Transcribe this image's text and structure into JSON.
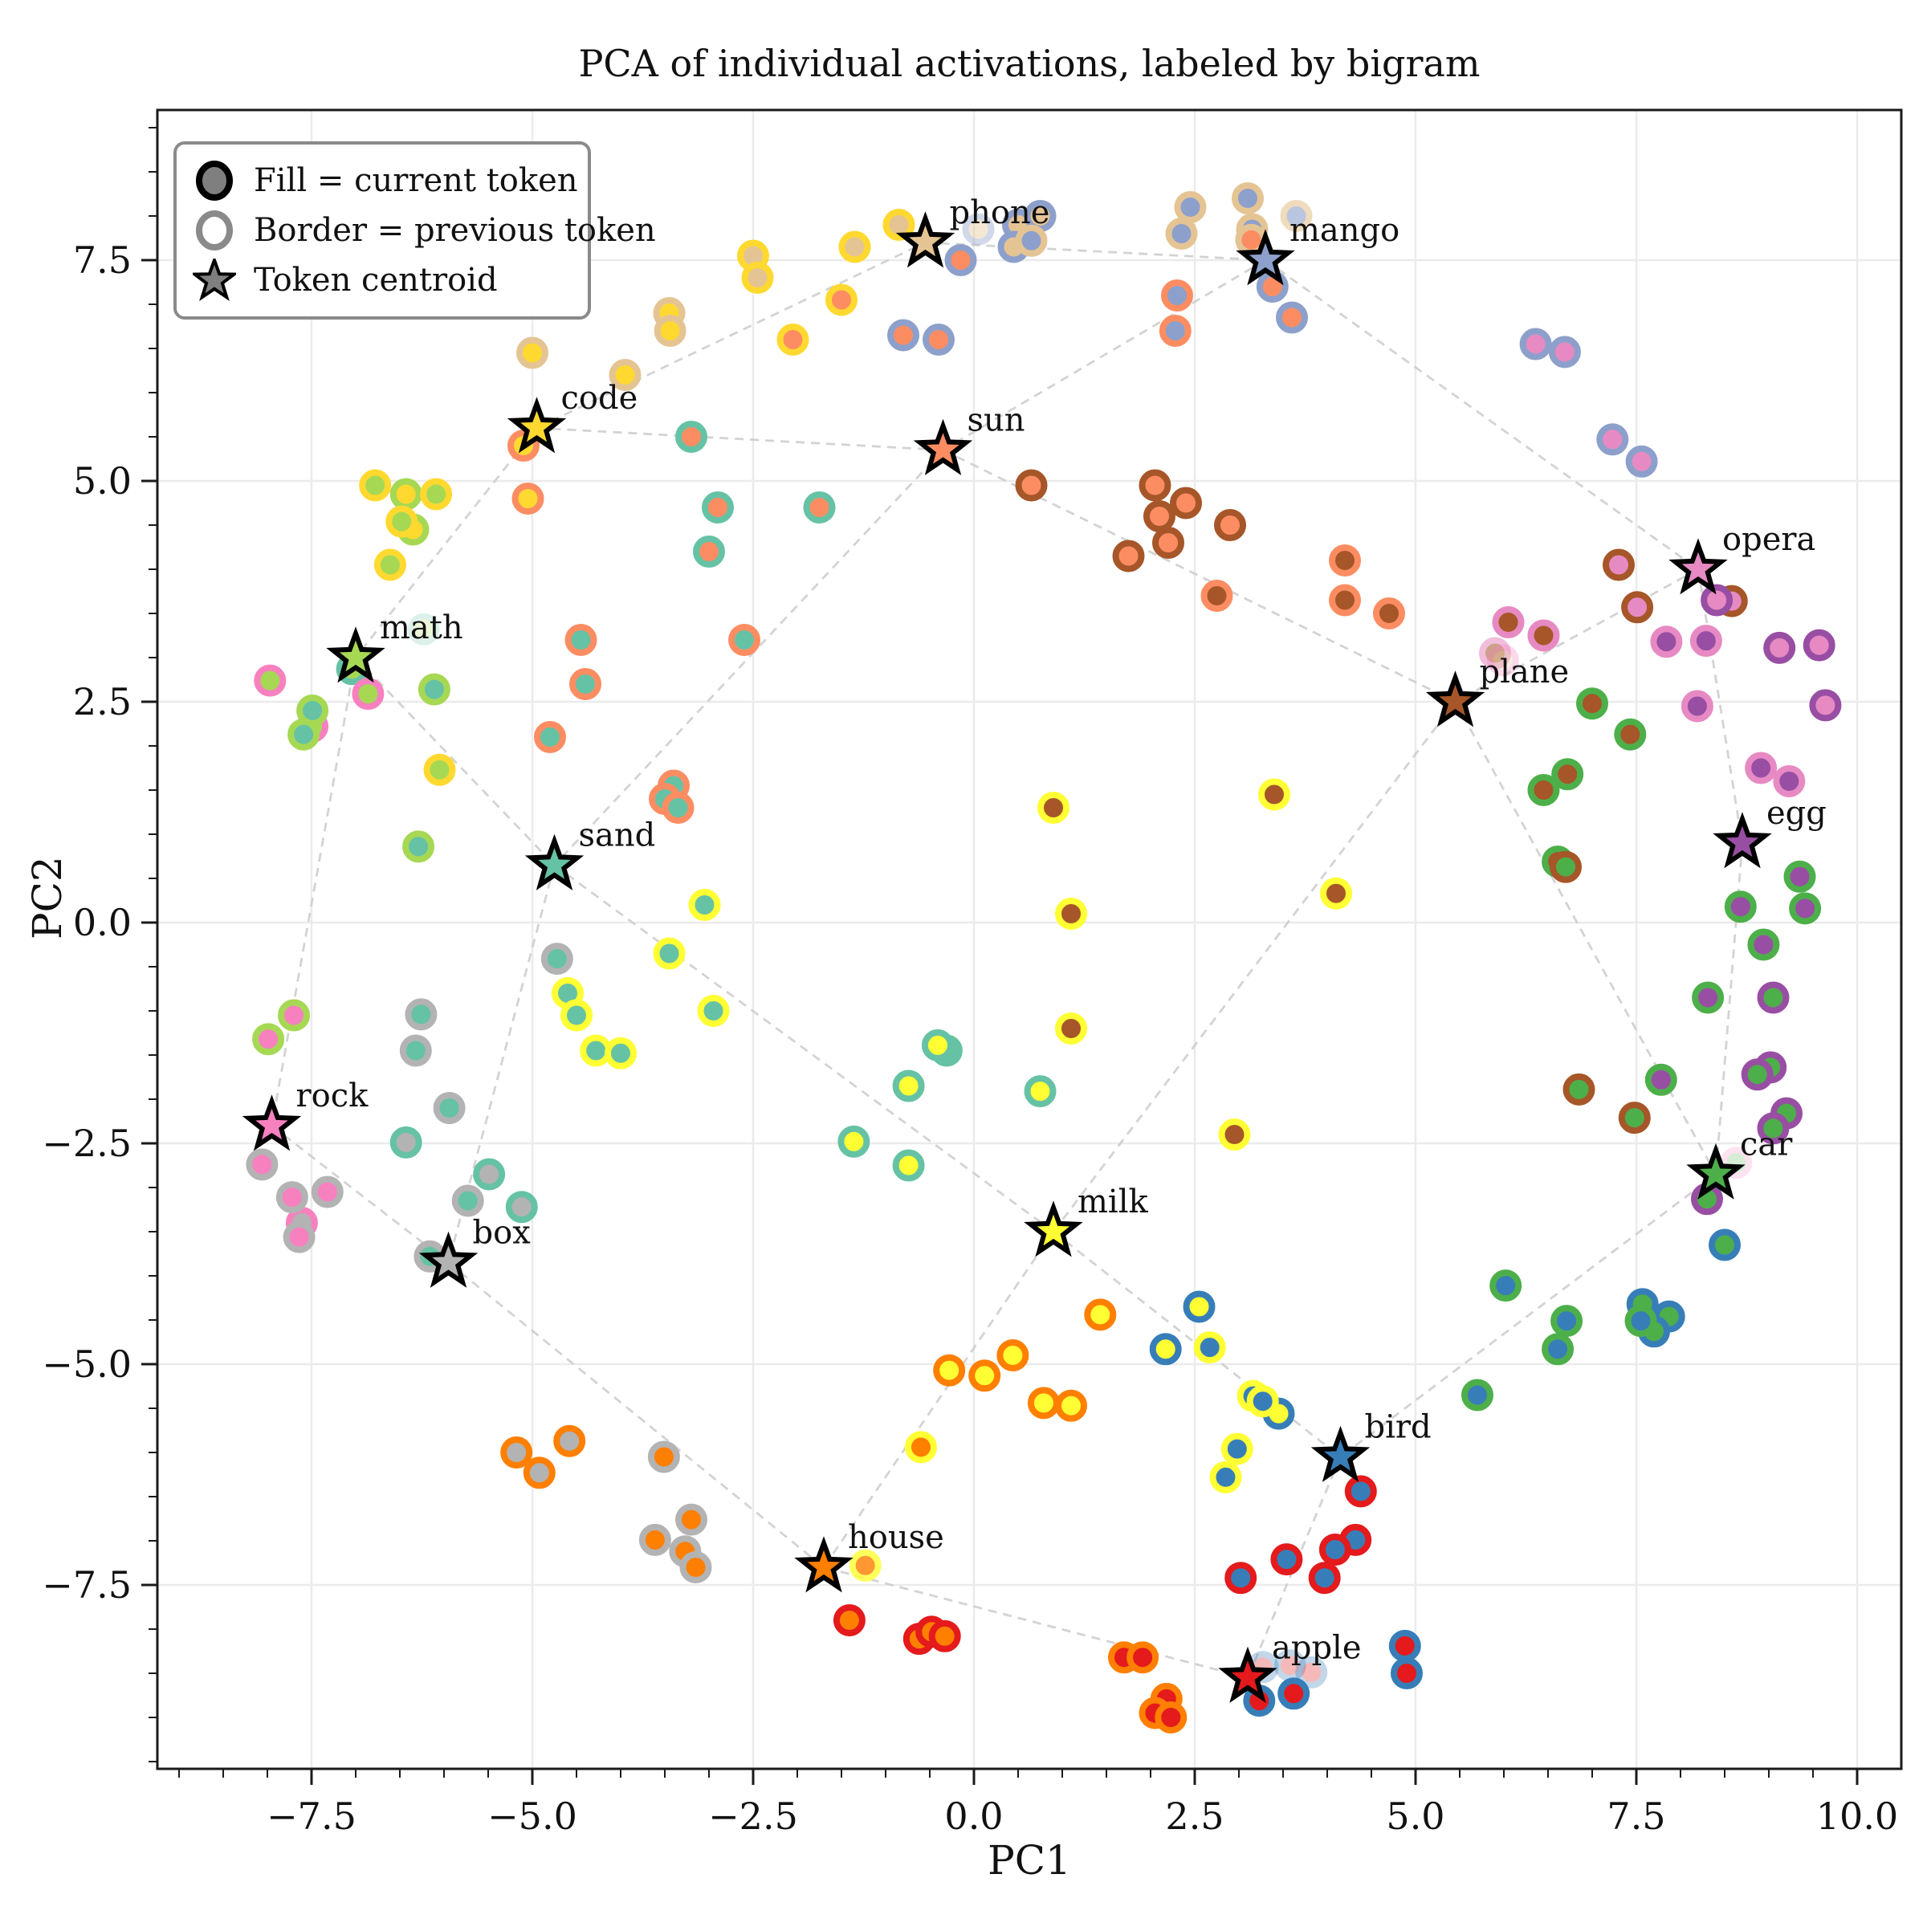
{
  "title": "PCA of individual activations, labeled by bigram",
  "axes": {
    "xlabel": "PC1",
    "ylabel": "PC2"
  },
  "legend": {
    "items": [
      {
        "icon": "filled-circle",
        "label": "Fill = current token"
      },
      {
        "icon": "open-circle",
        "label": "Border = previous token"
      },
      {
        "icon": "star",
        "label": "Token centroid"
      }
    ]
  },
  "chart_data": {
    "type": "scatter",
    "title": "PCA of individual activations, labeled by bigram",
    "xlabel": "PC1",
    "ylabel": "PC2",
    "xlim": [
      -9.25,
      10.5
    ],
    "ylim": [
      -9.6,
      9.2
    ],
    "xticks": [
      -7.5,
      -5.0,
      -2.5,
      0.0,
      2.5,
      5.0,
      7.5,
      10.0
    ],
    "yticks": [
      -7.5,
      -5.0,
      -2.5,
      0.0,
      2.5,
      5.0,
      7.5
    ],
    "grid": true,
    "colors": {
      "apple": "#E41A1C",
      "bird": "#377EB8",
      "box": "#B3B3B3",
      "car": "#4DAF4A",
      "code": "#FFD92F",
      "egg": "#984EA3",
      "house": "#FF7F00",
      "mango": "#8DA0CB",
      "math": "#A6D854",
      "milk": "#FFFF33",
      "opera": "#E78AC3",
      "phone": "#E5C494",
      "plane": "#A65628",
      "rock": "#F781BF",
      "sand": "#66C2A5",
      "sun": "#FC8D62"
    },
    "centroids": [
      {
        "token": "phone",
        "x": -0.55,
        "y": 7.7
      },
      {
        "token": "mango",
        "x": 3.3,
        "y": 7.5
      },
      {
        "token": "code",
        "x": -4.95,
        "y": 5.6
      },
      {
        "token": "sun",
        "x": -0.35,
        "y": 5.35
      },
      {
        "token": "opera",
        "x": 8.2,
        "y": 4.0
      },
      {
        "token": "math",
        "x": -7.0,
        "y": 3.0
      },
      {
        "token": "plane",
        "x": 5.45,
        "y": 2.5
      },
      {
        "token": "egg",
        "x": 8.7,
        "y": 0.9
      },
      {
        "token": "sand",
        "x": -4.75,
        "y": 0.65
      },
      {
        "token": "rock",
        "x": -7.95,
        "y": -2.3
      },
      {
        "token": "car",
        "x": 8.4,
        "y": -2.85
      },
      {
        "token": "box",
        "x": -5.95,
        "y": -3.85
      },
      {
        "token": "milk",
        "x": 0.9,
        "y": -3.5
      },
      {
        "token": "bird",
        "x": 4.15,
        "y": -6.05
      },
      {
        "token": "house",
        "x": -1.7,
        "y": -7.3
      },
      {
        "token": "apple",
        "x": 3.1,
        "y": -8.55
      }
    ],
    "edges": [
      [
        "code",
        "phone"
      ],
      [
        "code",
        "sun"
      ],
      [
        "code",
        "math"
      ],
      [
        "phone",
        "mango"
      ],
      [
        "mango",
        "sun"
      ],
      [
        "mango",
        "opera"
      ],
      [
        "sun",
        "plane"
      ],
      [
        "sun",
        "sand"
      ],
      [
        "opera",
        "plane"
      ],
      [
        "opera",
        "egg"
      ],
      [
        "egg",
        "car"
      ],
      [
        "plane",
        "car"
      ],
      [
        "plane",
        "milk"
      ],
      [
        "car",
        "bird"
      ],
      [
        "math",
        "rock"
      ],
      [
        "math",
        "sand"
      ],
      [
        "sand",
        "box"
      ],
      [
        "sand",
        "milk"
      ],
      [
        "rock",
        "box"
      ],
      [
        "box",
        "house"
      ],
      [
        "milk",
        "house"
      ],
      [
        "milk",
        "bird"
      ],
      [
        "bird",
        "apple"
      ],
      [
        "apple",
        "house"
      ]
    ],
    "points": [
      [
        -0.85,
        7.9,
        "phone",
        "code"
      ],
      [
        -1.35,
        7.65,
        "phone",
        "code"
      ],
      [
        -2.5,
        7.55,
        "phone",
        "code"
      ],
      [
        -2.45,
        7.3,
        "phone",
        "code"
      ],
      [
        0.05,
        7.85,
        "phone",
        "mango",
        0.4
      ],
      [
        0.5,
        7.9,
        "phone",
        "mango"
      ],
      [
        0.75,
        8.0,
        "phone",
        "mango"
      ],
      [
        0.45,
        7.65,
        "phone",
        "mango"
      ],
      [
        -3.45,
        6.9,
        "code",
        "phone"
      ],
      [
        -3.44,
        6.7,
        "code",
        "phone"
      ],
      [
        -5.0,
        6.45,
        "code",
        "phone"
      ],
      [
        -3.95,
        6.2,
        "code",
        "phone"
      ],
      [
        -5.1,
        5.4,
        "code",
        "sun"
      ],
      [
        -5.05,
        4.8,
        "code",
        "sun"
      ],
      [
        -6.43,
        4.85,
        "code",
        "math"
      ],
      [
        -6.35,
        4.45,
        "code",
        "math"
      ],
      [
        2.45,
        8.1,
        "mango",
        "phone"
      ],
      [
        3.1,
        8.2,
        "mango",
        "phone"
      ],
      [
        2.35,
        7.8,
        "mango",
        "phone"
      ],
      [
        3.15,
        7.85,
        "mango",
        "phone"
      ],
      [
        3.65,
        8.0,
        "mango",
        "phone",
        0.6
      ],
      [
        0.65,
        7.72,
        "mango",
        "phone"
      ],
      [
        2.3,
        7.1,
        "mango",
        "sun"
      ],
      [
        2.28,
        6.7,
        "mango",
        "sun"
      ],
      [
        -0.15,
        7.5,
        "sun",
        "mango"
      ],
      [
        -0.8,
        6.65,
        "sun",
        "mango"
      ],
      [
        -0.4,
        6.6,
        "sun",
        "mango"
      ],
      [
        3.38,
        7.2,
        "sun",
        "mango"
      ],
      [
        3.6,
        6.85,
        "sun",
        "mango"
      ],
      [
        3.14,
        7.73,
        "sun",
        "phone"
      ],
      [
        -1.5,
        7.05,
        "sun",
        "code"
      ],
      [
        -2.05,
        6.6,
        "sun",
        "code"
      ],
      [
        0.65,
        4.95,
        "sun",
        "plane"
      ],
      [
        2.05,
        4.95,
        "sun",
        "plane"
      ],
      [
        2.4,
        4.75,
        "sun",
        "plane"
      ],
      [
        2.1,
        4.6,
        "sun",
        "plane"
      ],
      [
        2.2,
        4.3,
        "sun",
        "plane"
      ],
      [
        1.75,
        4.15,
        "sun",
        "plane"
      ],
      [
        2.9,
        4.5,
        "sun",
        "plane"
      ],
      [
        -3.2,
        5.5,
        "sun",
        "sand"
      ],
      [
        -2.9,
        4.7,
        "sun",
        "sand"
      ],
      [
        -3.0,
        4.2,
        "sun",
        "sand"
      ],
      [
        -1.75,
        4.7,
        "sun",
        "sand"
      ],
      [
        -6.78,
        4.95,
        "math",
        "code"
      ],
      [
        -6.09,
        4.85,
        "math",
        "code"
      ],
      [
        -6.48,
        4.54,
        "math",
        "code"
      ],
      [
        -6.61,
        4.05,
        "math",
        "code"
      ],
      [
        -6.05,
        1.73,
        "math",
        "code"
      ],
      [
        -7.04,
        2.87,
        "math",
        "sand"
      ],
      [
        -7.97,
        2.74,
        "math",
        "rock"
      ],
      [
        -6.86,
        2.59,
        "math",
        "rock"
      ],
      [
        -7.49,
        2.22,
        "math",
        "rock"
      ],
      [
        -6.23,
        3.32,
        "math",
        "sand",
        0.22
      ],
      [
        -6.11,
        2.64,
        "sand",
        "math"
      ],
      [
        -7.49,
        2.4,
        "sand",
        "math"
      ],
      [
        -7.59,
        2.13,
        "sand",
        "math"
      ],
      [
        -6.29,
        0.86,
        "sand",
        "math"
      ],
      [
        -4.45,
        3.2,
        "sand",
        "sun"
      ],
      [
        -4.4,
        2.7,
        "sand",
        "sun"
      ],
      [
        -4.8,
        2.1,
        "sand",
        "sun"
      ],
      [
        -2.6,
        3.2,
        "sand",
        "sun"
      ],
      [
        -3.4,
        1.55,
        "sand",
        "sun"
      ],
      [
        -3.5,
        1.4,
        "sand",
        "sun"
      ],
      [
        -3.35,
        1.3,
        "sand",
        "sun"
      ],
      [
        -3.05,
        0.2,
        "sand",
        "milk"
      ],
      [
        -3.45,
        -0.35,
        "sand",
        "milk"
      ],
      [
        -2.95,
        -1.0,
        "sand",
        "milk"
      ],
      [
        -4.6,
        -0.8,
        "sand",
        "milk"
      ],
      [
        -4.5,
        -1.05,
        "sand",
        "milk"
      ],
      [
        -4.28,
        -1.45,
        "sand",
        "milk"
      ],
      [
        -4.0,
        -1.48,
        "sand",
        "milk"
      ],
      [
        -0.31,
        -1.45,
        "sand",
        "sand"
      ],
      [
        -4.72,
        -0.41,
        "sand",
        "box"
      ],
      [
        -6.26,
        -1.04,
        "sand",
        "box"
      ],
      [
        -6.32,
        -1.45,
        "sand",
        "box"
      ],
      [
        -5.94,
        -2.1,
        "sand",
        "box"
      ],
      [
        -5.73,
        -3.15,
        "sand",
        "box"
      ],
      [
        -6.16,
        -3.78,
        "sand",
        "box"
      ],
      [
        -6.43,
        -2.49,
        "box",
        "sand"
      ],
      [
        -5.49,
        -2.85,
        "box",
        "sand"
      ],
      [
        -5.12,
        -3.22,
        "box",
        "sand"
      ],
      [
        -7.61,
        -3.4,
        "box",
        "rock"
      ],
      [
        -5.18,
        -6.0,
        "box",
        "house"
      ],
      [
        -4.58,
        -5.87,
        "box",
        "house"
      ],
      [
        -4.92,
        -6.23,
        "box",
        "house"
      ],
      [
        -7.7,
        -1.05,
        "rock",
        "math"
      ],
      [
        -7.99,
        -1.32,
        "rock",
        "math"
      ],
      [
        -8.06,
        -2.74,
        "rock",
        "box"
      ],
      [
        -7.72,
        -3.11,
        "rock",
        "box"
      ],
      [
        -7.32,
        -3.05,
        "rock",
        "box"
      ],
      [
        -7.64,
        -3.56,
        "rock",
        "box"
      ],
      [
        -0.41,
        -1.39,
        "milk",
        "sand"
      ],
      [
        -0.74,
        -1.85,
        "milk",
        "sand"
      ],
      [
        0.75,
        -1.91,
        "milk",
        "sand"
      ],
      [
        -1.36,
        -2.48,
        "milk",
        "sand"
      ],
      [
        -0.74,
        -2.75,
        "milk",
        "sand"
      ],
      [
        1.43,
        -4.44,
        "milk",
        "house"
      ],
      [
        0.44,
        -4.9,
        "milk",
        "house"
      ],
      [
        -0.28,
        -5.07,
        "milk",
        "house"
      ],
      [
        0.12,
        -5.13,
        "milk",
        "house"
      ],
      [
        0.79,
        -5.44,
        "milk",
        "house"
      ],
      [
        1.1,
        -5.47,
        "milk",
        "house"
      ],
      [
        2.55,
        -4.35,
        "milk",
        "bird"
      ],
      [
        2.17,
        -4.83,
        "milk",
        "bird"
      ],
      [
        3.45,
        -5.56,
        "milk",
        "bird"
      ],
      [
        3.4,
        1.45,
        "plane",
        "milk"
      ],
      [
        0.9,
        1.3,
        "plane",
        "milk"
      ],
      [
        1.1,
        0.1,
        "plane",
        "milk"
      ],
      [
        1.1,
        -1.2,
        "plane",
        "milk"
      ],
      [
        2.95,
        -2.4,
        "plane",
        "milk"
      ],
      [
        4.1,
        0.33,
        "plane",
        "milk"
      ],
      [
        4.2,
        4.1,
        "plane",
        "sun"
      ],
      [
        4.2,
        3.65,
        "plane",
        "sun"
      ],
      [
        4.7,
        3.5,
        "plane",
        "sun"
      ],
      [
        2.75,
        3.7,
        "plane",
        "sun"
      ],
      [
        6.05,
        3.4,
        "plane",
        "opera"
      ],
      [
        6.45,
        3.25,
        "plane",
        "opera"
      ],
      [
        5.9,
        3.05,
        "plane",
        "opera",
        0.55
      ],
      [
        5.99,
        2.97,
        "phone",
        "rock",
        0.3
      ],
      [
        7.0,
        2.48,
        "plane",
        "car"
      ],
      [
        7.43,
        2.13,
        "plane",
        "car"
      ],
      [
        6.72,
        1.68,
        "plane",
        "car"
      ],
      [
        6.45,
        1.5,
        "plane",
        "car"
      ],
      [
        6.61,
        0.69,
        "plane",
        "car"
      ],
      [
        6.36,
        6.55,
        "opera",
        "mango"
      ],
      [
        6.69,
        6.46,
        "opera",
        "mango"
      ],
      [
        7.23,
        5.47,
        "opera",
        "mango"
      ],
      [
        7.56,
        5.22,
        "opera",
        "mango"
      ],
      [
        7.3,
        4.05,
        "opera",
        "plane"
      ],
      [
        7.51,
        3.57,
        "opera",
        "plane"
      ],
      [
        8.58,
        3.64,
        "opera",
        "plane"
      ],
      [
        8.41,
        3.65,
        "opera",
        "egg"
      ],
      [
        9.64,
        2.46,
        "opera",
        "egg"
      ],
      [
        9.12,
        3.11,
        "opera",
        "egg"
      ],
      [
        9.57,
        3.14,
        "opera",
        "egg"
      ],
      [
        8.19,
        2.45,
        "egg",
        "opera"
      ],
      [
        8.91,
        1.75,
        "egg",
        "opera"
      ],
      [
        9.23,
        1.6,
        "egg",
        "opera"
      ],
      [
        7.84,
        3.18,
        "egg",
        "opera"
      ],
      [
        8.29,
        3.19,
        "egg",
        "opera"
      ],
      [
        9.35,
        0.52,
        "egg",
        "car"
      ],
      [
        8.68,
        0.18,
        "egg",
        "car"
      ],
      [
        9.41,
        0.16,
        "egg",
        "car"
      ],
      [
        8.94,
        -0.25,
        "egg",
        "car"
      ],
      [
        8.31,
        -0.85,
        "egg",
        "car"
      ],
      [
        7.78,
        -1.78,
        "egg",
        "car"
      ],
      [
        9.05,
        -0.85,
        "car",
        "egg"
      ],
      [
        9.02,
        -1.64,
        "car",
        "egg"
      ],
      [
        8.87,
        -1.72,
        "car",
        "egg"
      ],
      [
        9.2,
        -2.16,
        "car",
        "egg"
      ],
      [
        9.05,
        -2.33,
        "car",
        "egg"
      ],
      [
        8.3,
        -3.13,
        "car",
        "egg"
      ],
      [
        6.85,
        -1.89,
        "car",
        "plane"
      ],
      [
        7.48,
        -2.21,
        "car",
        "plane"
      ],
      [
        6.7,
        0.63,
        "car",
        "plane"
      ],
      [
        8.5,
        -3.65,
        "car",
        "bird"
      ],
      [
        7.57,
        -4.32,
        "car",
        "bird"
      ],
      [
        7.87,
        -4.46,
        "car",
        "bird"
      ],
      [
        7.7,
        -4.63,
        "car",
        "bird"
      ],
      [
        8.63,
        -2.72,
        "car",
        "rock",
        0.22
      ],
      [
        6.02,
        -4.11,
        "bird",
        "car"
      ],
      [
        7.55,
        -4.51,
        "bird",
        "car"
      ],
      [
        6.71,
        -4.51,
        "bird",
        "car"
      ],
      [
        6.61,
        -4.83,
        "bird",
        "car"
      ],
      [
        5.7,
        -5.35,
        "bird",
        "car"
      ],
      [
        3.16,
        -5.36,
        "bird",
        "milk"
      ],
      [
        2.98,
        -5.96,
        "bird",
        "milk"
      ],
      [
        2.85,
        -6.28,
        "bird",
        "milk"
      ],
      [
        2.67,
        -4.81,
        "bird",
        "milk"
      ],
      [
        3.27,
        -5.42,
        "bird",
        "milk"
      ],
      [
        4.38,
        -6.44,
        "bird",
        "apple"
      ],
      [
        4.32,
        -6.99,
        "bird",
        "apple"
      ],
      [
        4.09,
        -7.1,
        "bird",
        "apple"
      ],
      [
        3.54,
        -7.21,
        "bird",
        "apple"
      ],
      [
        3.97,
        -7.42,
        "bird",
        "apple"
      ],
      [
        3.02,
        -7.42,
        "bird",
        "apple"
      ],
      [
        3.23,
        -8.81,
        "apple",
        "bird"
      ],
      [
        3.62,
        -8.73,
        "apple",
        "bird"
      ],
      [
        4.88,
        -8.19,
        "apple",
        "bird"
      ],
      [
        4.9,
        -8.5,
        "apple",
        "bird"
      ],
      [
        1.7,
        -8.32,
        "apple",
        "house"
      ],
      [
        1.91,
        -8.32,
        "apple",
        "house"
      ],
      [
        2.18,
        -8.79,
        "apple",
        "house"
      ],
      [
        2.05,
        -8.95,
        "apple",
        "house"
      ],
      [
        2.23,
        -9.0,
        "apple",
        "house"
      ],
      [
        3.27,
        -8.43,
        "apple",
        "bird",
        0.3
      ],
      [
        3.58,
        -8.41,
        "apple",
        "bird",
        0.3
      ],
      [
        3.82,
        -8.49,
        "apple",
        "bird",
        0.3
      ],
      [
        -3.51,
        -6.05,
        "house",
        "box"
      ],
      [
        -3.2,
        -6.76,
        "house",
        "box"
      ],
      [
        -3.61,
        -6.99,
        "house",
        "box"
      ],
      [
        -3.27,
        -7.12,
        "house",
        "box"
      ],
      [
        -3.15,
        -7.3,
        "house",
        "box"
      ],
      [
        -1.23,
        -7.28,
        "house",
        "milk",
        0.8
      ],
      [
        -0.6,
        -5.94,
        "house",
        "milk"
      ],
      [
        -1.41,
        -7.9,
        "house",
        "apple"
      ],
      [
        -0.62,
        -8.11,
        "house",
        "apple"
      ],
      [
        -0.48,
        -8.03,
        "house",
        "apple"
      ],
      [
        -0.33,
        -8.08,
        "house",
        "apple"
      ]
    ]
  }
}
